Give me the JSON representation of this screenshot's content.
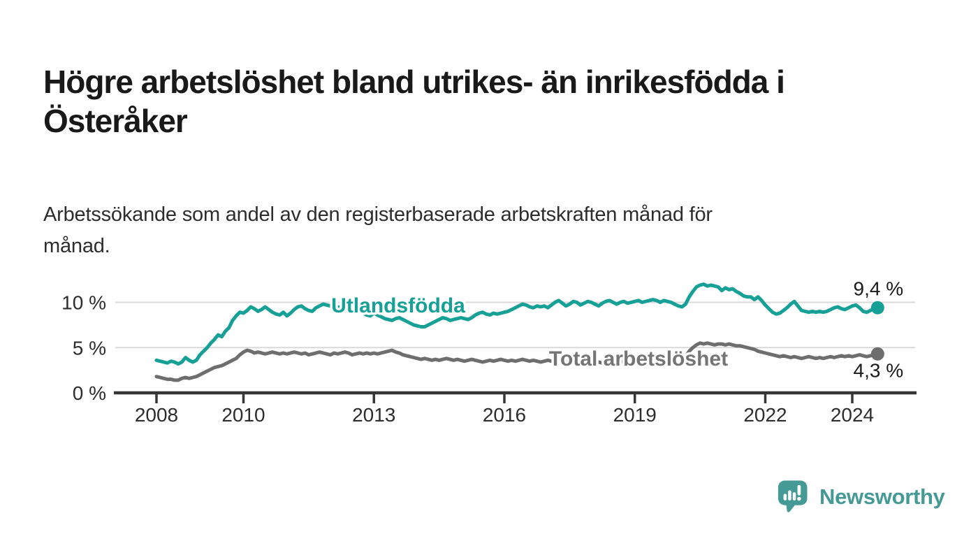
{
  "title": {
    "line1": "Högre arbetslöshet bland utrikes- än inrikesfödda i",
    "line2": "Österåker"
  },
  "subtitle": {
    "line1": "Arbetssökande som andel av den registerbaserade arbetskraften månad för",
    "line2": "månad."
  },
  "logo": {
    "text": "Newsworthy",
    "color": "#459a95",
    "icon": "speech-bubble-bar-chart-icon"
  },
  "colors": {
    "background": "#ffffff",
    "title_text": "#191919",
    "subtitle_text": "#2d2d2d",
    "grid": "#d9d9d9",
    "axis": "#363636",
    "tick_text": "#2d2d2d",
    "value_label_text": "#1a1a1a",
    "accent_teal": "#16a096",
    "accent_gray": "#6e6e6e"
  },
  "chart_data": {
    "type": "line",
    "unit": "%",
    "frequency": "monthly",
    "x_start": {
      "year": 2008,
      "month": 1
    },
    "x_end": {
      "year": 2024,
      "month": 8
    },
    "x_tick_years": [
      2008,
      2010,
      2013,
      2016,
      2019,
      2022,
      2024
    ],
    "y_ticks": [
      {
        "value": 0,
        "label": "0 %"
      },
      {
        "value": 5,
        "label": "5 %"
      },
      {
        "value": 10,
        "label": "10 %"
      }
    ],
    "ylim": [
      0,
      13
    ],
    "grid": "horizontal-only",
    "legend_position": "inline-labels-on-chart",
    "series": [
      {
        "name": "Utlandsfödda",
        "color": "#16a096",
        "label_color": "#16a096",
        "end_value_label": "9,4 %",
        "end_value": 9.4,
        "values": [
          3.6,
          3.5,
          3.4,
          3.3,
          3.5,
          3.4,
          3.2,
          3.4,
          3.9,
          3.6,
          3.4,
          3.6,
          4.2,
          4.6,
          5.0,
          5.5,
          5.9,
          6.4,
          6.2,
          6.8,
          7.2,
          8.0,
          8.5,
          8.9,
          8.8,
          9.1,
          9.5,
          9.3,
          9.0,
          9.2,
          9.5,
          9.2,
          8.9,
          8.7,
          8.6,
          8.9,
          8.5,
          8.8,
          9.2,
          9.5,
          9.6,
          9.3,
          9.1,
          9.0,
          9.4,
          9.6,
          9.8,
          9.7,
          9.6,
          9.7,
          9.5,
          9.4,
          9.5,
          9.3,
          9.1,
          9.2,
          9.0,
          8.8,
          8.6,
          8.5,
          8.8,
          8.6,
          8.4,
          8.2,
          8.1,
          8.0,
          8.2,
          8.3,
          8.1,
          7.9,
          7.7,
          7.5,
          7.4,
          7.3,
          7.3,
          7.5,
          7.7,
          7.9,
          8.1,
          8.3,
          8.2,
          8.0,
          8.1,
          8.2,
          8.3,
          8.2,
          8.1,
          8.3,
          8.6,
          8.8,
          8.9,
          8.7,
          8.6,
          8.8,
          8.7,
          8.8,
          8.9,
          9.0,
          9.2,
          9.4,
          9.6,
          9.8,
          9.7,
          9.5,
          9.4,
          9.6,
          9.5,
          9.6,
          9.4,
          9.7,
          10.0,
          10.2,
          9.9,
          9.6,
          9.8,
          10.1,
          10.0,
          9.7,
          9.9,
          10.1,
          10.0,
          9.8,
          9.6,
          9.9,
          10.1,
          10.2,
          10.0,
          9.8,
          10.0,
          10.1,
          9.9,
          10.0,
          10.1,
          10.2,
          10.0,
          10.1,
          10.2,
          10.3,
          10.2,
          10.0,
          10.2,
          10.1,
          10.0,
          9.8,
          9.6,
          9.5,
          9.8,
          10.6,
          11.2,
          11.7,
          11.9,
          12.0,
          11.8,
          11.9,
          11.8,
          11.7,
          11.3,
          11.6,
          11.4,
          11.5,
          11.2,
          11.0,
          10.7,
          10.6,
          10.6,
          10.3,
          10.6,
          10.2,
          9.7,
          9.3,
          8.9,
          8.7,
          8.8,
          9.1,
          9.4,
          9.8,
          10.1,
          9.6,
          9.1,
          9.0,
          8.9,
          9.0,
          8.9,
          9.0,
          8.9,
          9.0,
          9.2,
          9.4,
          9.5,
          9.3,
          9.2,
          9.4,
          9.6,
          9.7,
          9.4,
          9.0,
          8.9,
          9.1,
          9.3,
          9.4
        ]
      },
      {
        "name": "Total arbetslöshet",
        "color": "#6e6e6e",
        "label_color": "#757575",
        "end_value_label": "4,3 %",
        "end_value": 4.3,
        "values": [
          1.8,
          1.7,
          1.6,
          1.5,
          1.5,
          1.4,
          1.4,
          1.6,
          1.7,
          1.6,
          1.7,
          1.8,
          2.0,
          2.2,
          2.4,
          2.6,
          2.8,
          2.9,
          3.0,
          3.2,
          3.4,
          3.6,
          3.8,
          4.2,
          4.5,
          4.7,
          4.6,
          4.4,
          4.5,
          4.4,
          4.3,
          4.4,
          4.5,
          4.4,
          4.3,
          4.4,
          4.3,
          4.4,
          4.5,
          4.4,
          4.3,
          4.4,
          4.2,
          4.3,
          4.4,
          4.5,
          4.4,
          4.3,
          4.2,
          4.4,
          4.3,
          4.4,
          4.5,
          4.4,
          4.2,
          4.3,
          4.4,
          4.3,
          4.4,
          4.3,
          4.4,
          4.3,
          4.4,
          4.5,
          4.6,
          4.7,
          4.5,
          4.4,
          4.2,
          4.1,
          4.0,
          3.9,
          3.8,
          3.7,
          3.8,
          3.7,
          3.6,
          3.7,
          3.6,
          3.7,
          3.8,
          3.7,
          3.6,
          3.7,
          3.6,
          3.5,
          3.6,
          3.7,
          3.6,
          3.5,
          3.4,
          3.5,
          3.6,
          3.5,
          3.6,
          3.7,
          3.6,
          3.5,
          3.6,
          3.5,
          3.6,
          3.7,
          3.6,
          3.5,
          3.6,
          3.5,
          3.4,
          3.5,
          3.6,
          3.5,
          3.4,
          3.5,
          3.6,
          3.5,
          3.4,
          3.5,
          3.4,
          3.5,
          3.6,
          3.5,
          3.4,
          3.5,
          3.4,
          3.3,
          3.4,
          3.5,
          3.4,
          3.3,
          3.4,
          3.5,
          3.4,
          3.5,
          3.5,
          3.4,
          3.5,
          3.6,
          3.5,
          3.6,
          3.7,
          3.6,
          3.5,
          3.6,
          3.7,
          3.8,
          3.9,
          3.8,
          4.0,
          4.6,
          5.0,
          5.3,
          5.5,
          5.4,
          5.5,
          5.4,
          5.3,
          5.4,
          5.4,
          5.3,
          5.4,
          5.3,
          5.2,
          5.2,
          5.1,
          5.0,
          4.9,
          4.8,
          4.6,
          4.5,
          4.4,
          4.3,
          4.2,
          4.1,
          4.0,
          4.1,
          4.0,
          3.9,
          4.0,
          3.9,
          3.8,
          3.9,
          4.0,
          3.9,
          3.8,
          3.9,
          3.8,
          3.9,
          4.0,
          3.9,
          4.0,
          4.1,
          4.0,
          4.1,
          4.0,
          4.1,
          4.2,
          4.1,
          4.0,
          4.1,
          4.2,
          4.3
        ]
      }
    ]
  }
}
